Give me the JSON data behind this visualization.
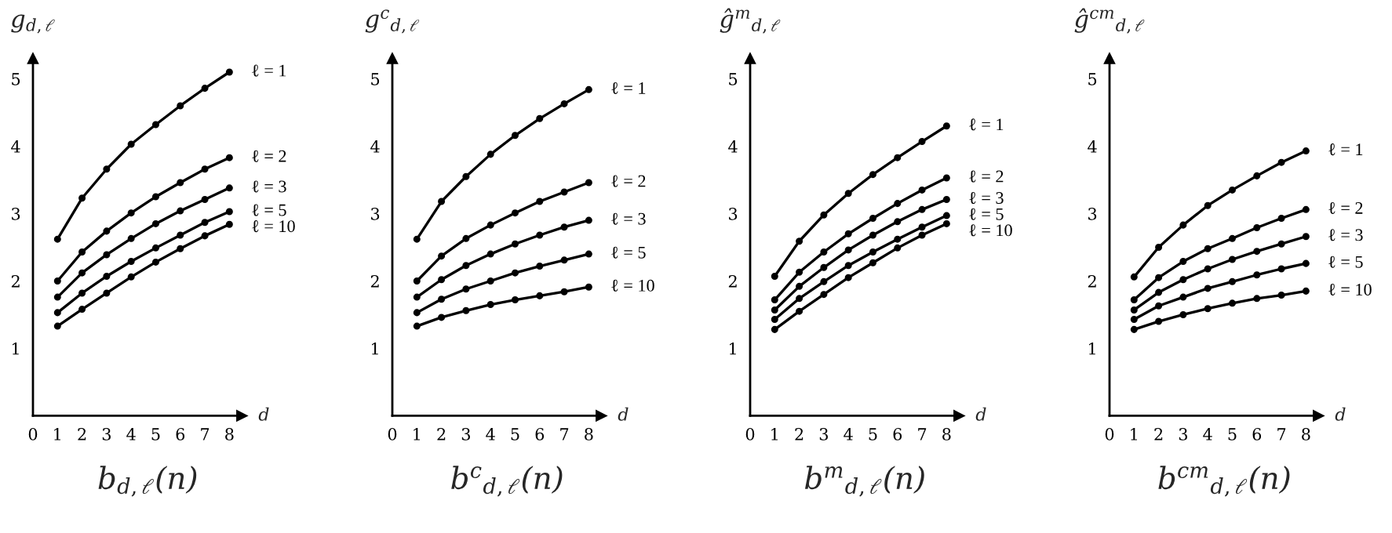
{
  "chart_data": [
    {
      "type": "line",
      "title": "b$_{d,ℓ}$(n)",
      "xlabel": "d",
      "ylabel": "g$_{d,ℓ}$",
      "x": [
        1,
        2,
        3,
        4,
        5,
        6,
        7,
        8
      ],
      "xlim": [
        0,
        8.5
      ],
      "ylim": [
        0,
        5.3
      ],
      "xticks": [
        0,
        1,
        2,
        3,
        4,
        5,
        6,
        7,
        8
      ],
      "yticks": [
        1,
        2,
        3,
        4,
        5
      ],
      "marker": "circle",
      "line_style": "solid",
      "grid": false,
      "series": [
        {
          "name": "ℓ = 1",
          "color": "#000000",
          "values": [
            2.62,
            3.23,
            3.66,
            4.03,
            4.32,
            4.6,
            4.86,
            5.1
          ]
        },
        {
          "name": "ℓ = 2",
          "color": "#000000",
          "values": [
            2.0,
            2.43,
            2.74,
            3.01,
            3.25,
            3.46,
            3.66,
            3.83
          ]
        },
        {
          "name": "ℓ = 3",
          "color": "#000000",
          "values": [
            1.76,
            2.12,
            2.39,
            2.63,
            2.85,
            3.04,
            3.21,
            3.38
          ]
        },
        {
          "name": "ℓ = 5",
          "color": "#000000",
          "values": [
            1.53,
            1.82,
            2.07,
            2.29,
            2.49,
            2.68,
            2.87,
            3.03
          ]
        },
        {
          "name": "ℓ = 10",
          "color": "#000000",
          "values": [
            1.33,
            1.58,
            1.82,
            2.06,
            2.28,
            2.48,
            2.67,
            2.84
          ]
        }
      ]
    },
    {
      "type": "line",
      "title": "b$^{c}$$_{d,ℓ}$(n)",
      "xlabel": "d",
      "ylabel": "g$^{c}$$_{d,ℓ}$",
      "x": [
        1,
        2,
        3,
        4,
        5,
        6,
        7,
        8
      ],
      "xlim": [
        0,
        8.5
      ],
      "ylim": [
        0,
        5.3
      ],
      "xticks": [
        0,
        1,
        2,
        3,
        4,
        5,
        6,
        7,
        8
      ],
      "yticks": [
        1,
        2,
        3,
        4,
        5
      ],
      "marker": "circle",
      "line_style": "solid",
      "grid": false,
      "series": [
        {
          "name": "ℓ = 1",
          "color": "#000000",
          "values": [
            2.62,
            3.18,
            3.55,
            3.88,
            4.16,
            4.41,
            4.63,
            4.84
          ]
        },
        {
          "name": "ℓ = 2",
          "color": "#000000",
          "values": [
            2.0,
            2.37,
            2.63,
            2.83,
            3.01,
            3.18,
            3.32,
            3.46
          ]
        },
        {
          "name": "ℓ = 3",
          "color": "#000000",
          "values": [
            1.76,
            2.02,
            2.23,
            2.4,
            2.55,
            2.68,
            2.8,
            2.9
          ]
        },
        {
          "name": "ℓ = 5",
          "color": "#000000",
          "values": [
            1.53,
            1.73,
            1.88,
            2.0,
            2.12,
            2.22,
            2.31,
            2.4
          ]
        },
        {
          "name": "ℓ = 10",
          "color": "#000000",
          "values": [
            1.33,
            1.46,
            1.56,
            1.65,
            1.72,
            1.78,
            1.84,
            1.91
          ]
        }
      ]
    },
    {
      "type": "line",
      "title": "b$^{m}$$_{d,ℓ}$(n)",
      "xlabel": "d",
      "ylabel": "ĝ$^{m}$$_{d,ℓ}$",
      "x": [
        1,
        2,
        3,
        4,
        5,
        6,
        7,
        8
      ],
      "xlim": [
        0,
        8.5
      ],
      "ylim": [
        0,
        5.3
      ],
      "xticks": [
        0,
        1,
        2,
        3,
        4,
        5,
        6,
        7,
        8
      ],
      "yticks": [
        1,
        2,
        3,
        4,
        5
      ],
      "marker": "circle",
      "line_style": "solid",
      "grid": false,
      "series": [
        {
          "name": "ℓ = 1",
          "color": "#000000",
          "values": [
            2.07,
            2.59,
            2.98,
            3.3,
            3.58,
            3.83,
            4.07,
            4.3
          ]
        },
        {
          "name": "ℓ = 2",
          "color": "#000000",
          "values": [
            1.72,
            2.13,
            2.43,
            2.7,
            2.93,
            3.15,
            3.35,
            3.53
          ]
        },
        {
          "name": "ℓ = 3",
          "color": "#000000",
          "values": [
            1.57,
            1.92,
            2.2,
            2.46,
            2.68,
            2.88,
            3.06,
            3.21
          ]
        },
        {
          "name": "ℓ = 5",
          "color": "#000000",
          "values": [
            1.43,
            1.74,
            1.99,
            2.23,
            2.43,
            2.62,
            2.8,
            2.97
          ]
        },
        {
          "name": "ℓ = 10",
          "color": "#000000",
          "values": [
            1.28,
            1.55,
            1.8,
            2.05,
            2.27,
            2.49,
            2.68,
            2.85
          ]
        }
      ]
    },
    {
      "type": "line",
      "title": "b$^{cm}$$_{d,ℓ}$(n)",
      "xlabel": "d",
      "ylabel": "ĝ$^{cm}$$_{d,ℓ}$",
      "x": [
        1,
        2,
        3,
        4,
        5,
        6,
        7,
        8
      ],
      "xlim": [
        0,
        8.5
      ],
      "ylim": [
        0,
        5.3
      ],
      "xticks": [
        0,
        1,
        2,
        3,
        4,
        5,
        6,
        7,
        8
      ],
      "yticks": [
        1,
        2,
        3,
        4,
        5
      ],
      "marker": "circle",
      "line_style": "solid",
      "grid": false,
      "series": [
        {
          "name": "ℓ = 1",
          "color": "#000000",
          "values": [
            2.06,
            2.5,
            2.83,
            3.12,
            3.35,
            3.56,
            3.76,
            3.93
          ]
        },
        {
          "name": "ℓ = 2",
          "color": "#000000",
          "values": [
            1.72,
            2.05,
            2.29,
            2.48,
            2.63,
            2.79,
            2.93,
            3.06
          ]
        },
        {
          "name": "ℓ = 3",
          "color": "#000000",
          "values": [
            1.57,
            1.83,
            2.02,
            2.18,
            2.32,
            2.44,
            2.55,
            2.66
          ]
        },
        {
          "name": "ℓ = 5",
          "color": "#000000",
          "values": [
            1.43,
            1.63,
            1.76,
            1.89,
            1.99,
            2.09,
            2.18,
            2.26
          ]
        },
        {
          "name": "ℓ = 10",
          "color": "#000000",
          "values": [
            1.28,
            1.4,
            1.5,
            1.59,
            1.67,
            1.74,
            1.79,
            1.85
          ]
        }
      ]
    }
  ]
}
